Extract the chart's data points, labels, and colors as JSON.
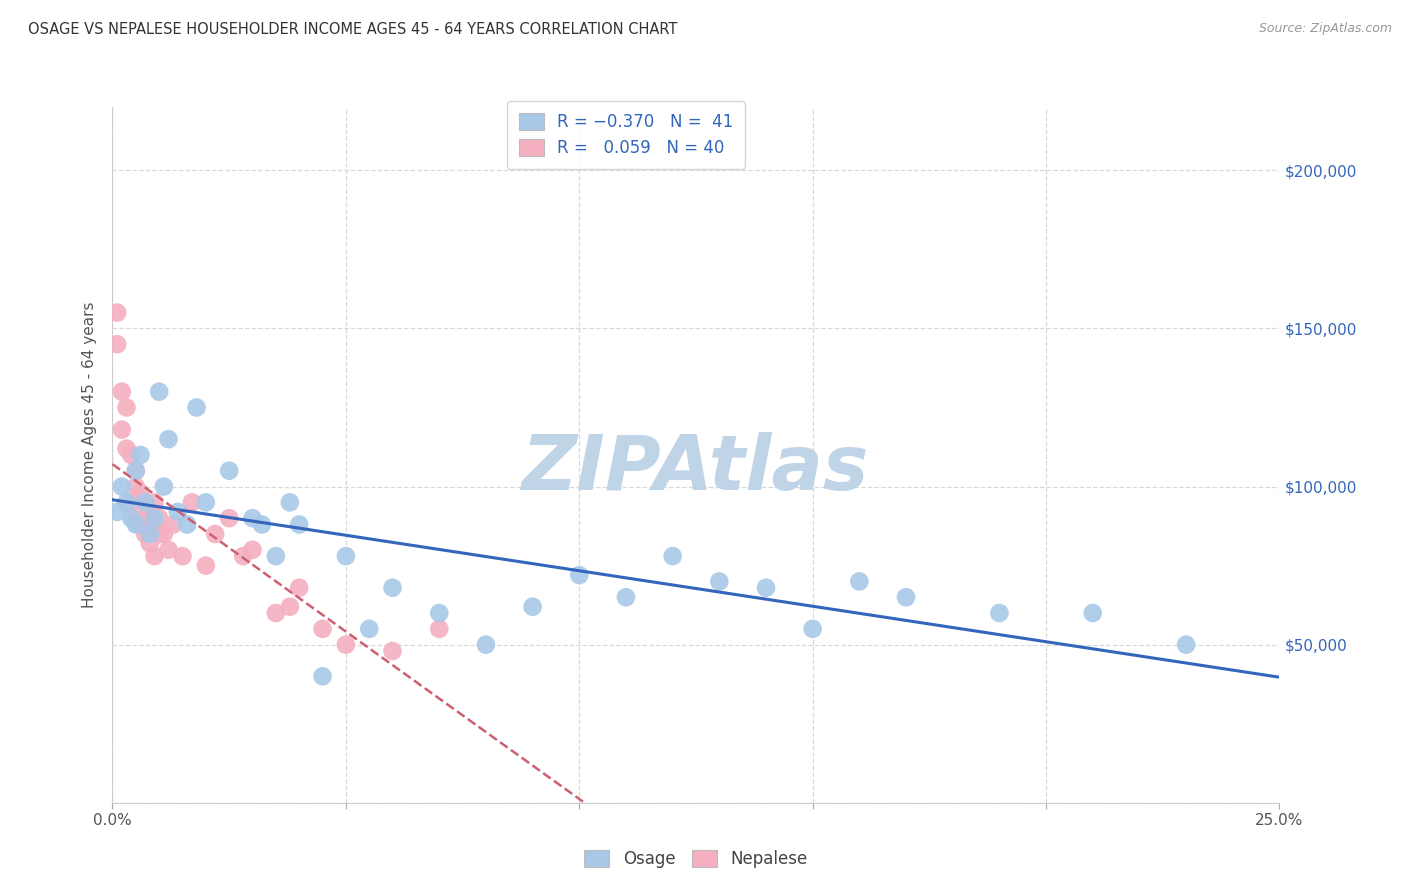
{
  "title": "OSAGE VS NEPALESE HOUSEHOLDER INCOME AGES 45 - 64 YEARS CORRELATION CHART",
  "source": "Source: ZipAtlas.com",
  "ylabel": "Householder Income Ages 45 - 64 years",
  "xlim": [
    0.0,
    0.25
  ],
  "ylim": [
    0,
    220000
  ],
  "xticks": [
    0.0,
    0.05,
    0.1,
    0.15,
    0.2,
    0.25
  ],
  "xticklabels": [
    "0.0%",
    "",
    "",
    "",
    "",
    "25.0%"
  ],
  "ytick_positions": [
    0,
    50000,
    100000,
    150000,
    200000
  ],
  "ytick_right_labels": [
    "",
    "$50,000",
    "$100,000",
    "$150,000",
    "$200,000"
  ],
  "bg_color": "#ffffff",
  "grid_color": "#d8d8d8",
  "watermark": "ZIPAtlas",
  "watermark_color": "#c0d4e8",
  "osage_dot_color": "#a8c8e8",
  "nepalese_dot_color": "#f4b0c0",
  "osage_line_color": "#3366bb",
  "nepalese_line_color": "#cc6070",
  "osage_r": -0.37,
  "osage_n": 41,
  "nepalese_r": 0.059,
  "nepalese_n": 40,
  "osage_x": [
    0.001,
    0.002,
    0.003,
    0.004,
    0.005,
    0.005,
    0.006,
    0.007,
    0.008,
    0.009,
    0.01,
    0.011,
    0.012,
    0.014,
    0.016,
    0.018,
    0.02,
    0.025,
    0.03,
    0.032,
    0.035,
    0.038,
    0.04,
    0.045,
    0.05,
    0.055,
    0.06,
    0.07,
    0.08,
    0.09,
    0.1,
    0.11,
    0.12,
    0.13,
    0.14,
    0.15,
    0.16,
    0.17,
    0.19,
    0.21,
    0.23
  ],
  "osage_y": [
    92000,
    100000,
    95000,
    90000,
    88000,
    105000,
    110000,
    95000,
    85000,
    90000,
    130000,
    100000,
    115000,
    92000,
    88000,
    125000,
    95000,
    105000,
    90000,
    88000,
    78000,
    95000,
    88000,
    40000,
    78000,
    55000,
    68000,
    60000,
    50000,
    62000,
    72000,
    65000,
    78000,
    70000,
    68000,
    55000,
    70000,
    65000,
    60000,
    60000,
    50000
  ],
  "nepalese_x": [
    0.001,
    0.001,
    0.002,
    0.002,
    0.003,
    0.003,
    0.004,
    0.004,
    0.005,
    0.005,
    0.005,
    0.006,
    0.006,
    0.007,
    0.007,
    0.007,
    0.008,
    0.008,
    0.008,
    0.009,
    0.009,
    0.01,
    0.01,
    0.011,
    0.012,
    0.013,
    0.015,
    0.017,
    0.02,
    0.022,
    0.025,
    0.028,
    0.03,
    0.035,
    0.038,
    0.04,
    0.045,
    0.05,
    0.06,
    0.07
  ],
  "nepalese_y": [
    155000,
    145000,
    130000,
    118000,
    112000,
    125000,
    110000,
    95000,
    105000,
    100000,
    90000,
    98000,
    88000,
    95000,
    90000,
    85000,
    92000,
    88000,
    82000,
    78000,
    95000,
    90000,
    85000,
    85000,
    80000,
    88000,
    78000,
    95000,
    75000,
    85000,
    90000,
    78000,
    80000,
    60000,
    62000,
    68000,
    55000,
    50000,
    48000,
    55000
  ]
}
